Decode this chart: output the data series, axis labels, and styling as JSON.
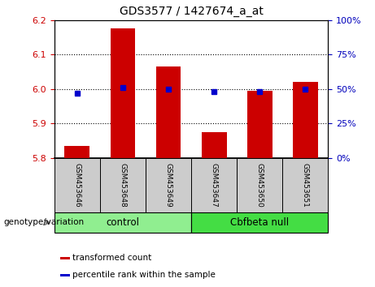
{
  "title": "GDS3577 / 1427674_a_at",
  "samples": [
    "GSM453646",
    "GSM453648",
    "GSM453649",
    "GSM453647",
    "GSM453650",
    "GSM453651"
  ],
  "transformed_counts": [
    5.835,
    6.175,
    6.065,
    5.875,
    5.995,
    6.02
  ],
  "percentile_ranks": [
    47,
    51,
    50,
    48,
    48,
    50
  ],
  "group_spans": {
    "control": [
      0,
      2
    ],
    "Cbfbeta null": [
      3,
      5
    ]
  },
  "group_colors": {
    "control": "#90EE90",
    "Cbfbeta null": "#44DD44"
  },
  "bar_color": "#CC0000",
  "dot_color": "#0000CC",
  "ylim_left": [
    5.8,
    6.2
  ],
  "ylim_right": [
    0,
    100
  ],
  "yticks_left": [
    5.8,
    5.9,
    6.0,
    6.1,
    6.2
  ],
  "yticks_right": [
    0,
    25,
    50,
    75,
    100
  ],
  "left_tick_color": "#CC0000",
  "right_tick_color": "#0000BB",
  "grid_ticks": [
    5.9,
    6.0,
    6.1
  ],
  "label_area_color": "#CCCCCC",
  "group_label": "genotype/variation",
  "legend_items": [
    {
      "label": "transformed count",
      "color": "#CC0000"
    },
    {
      "label": "percentile rank within the sample",
      "color": "#0000CC"
    }
  ]
}
